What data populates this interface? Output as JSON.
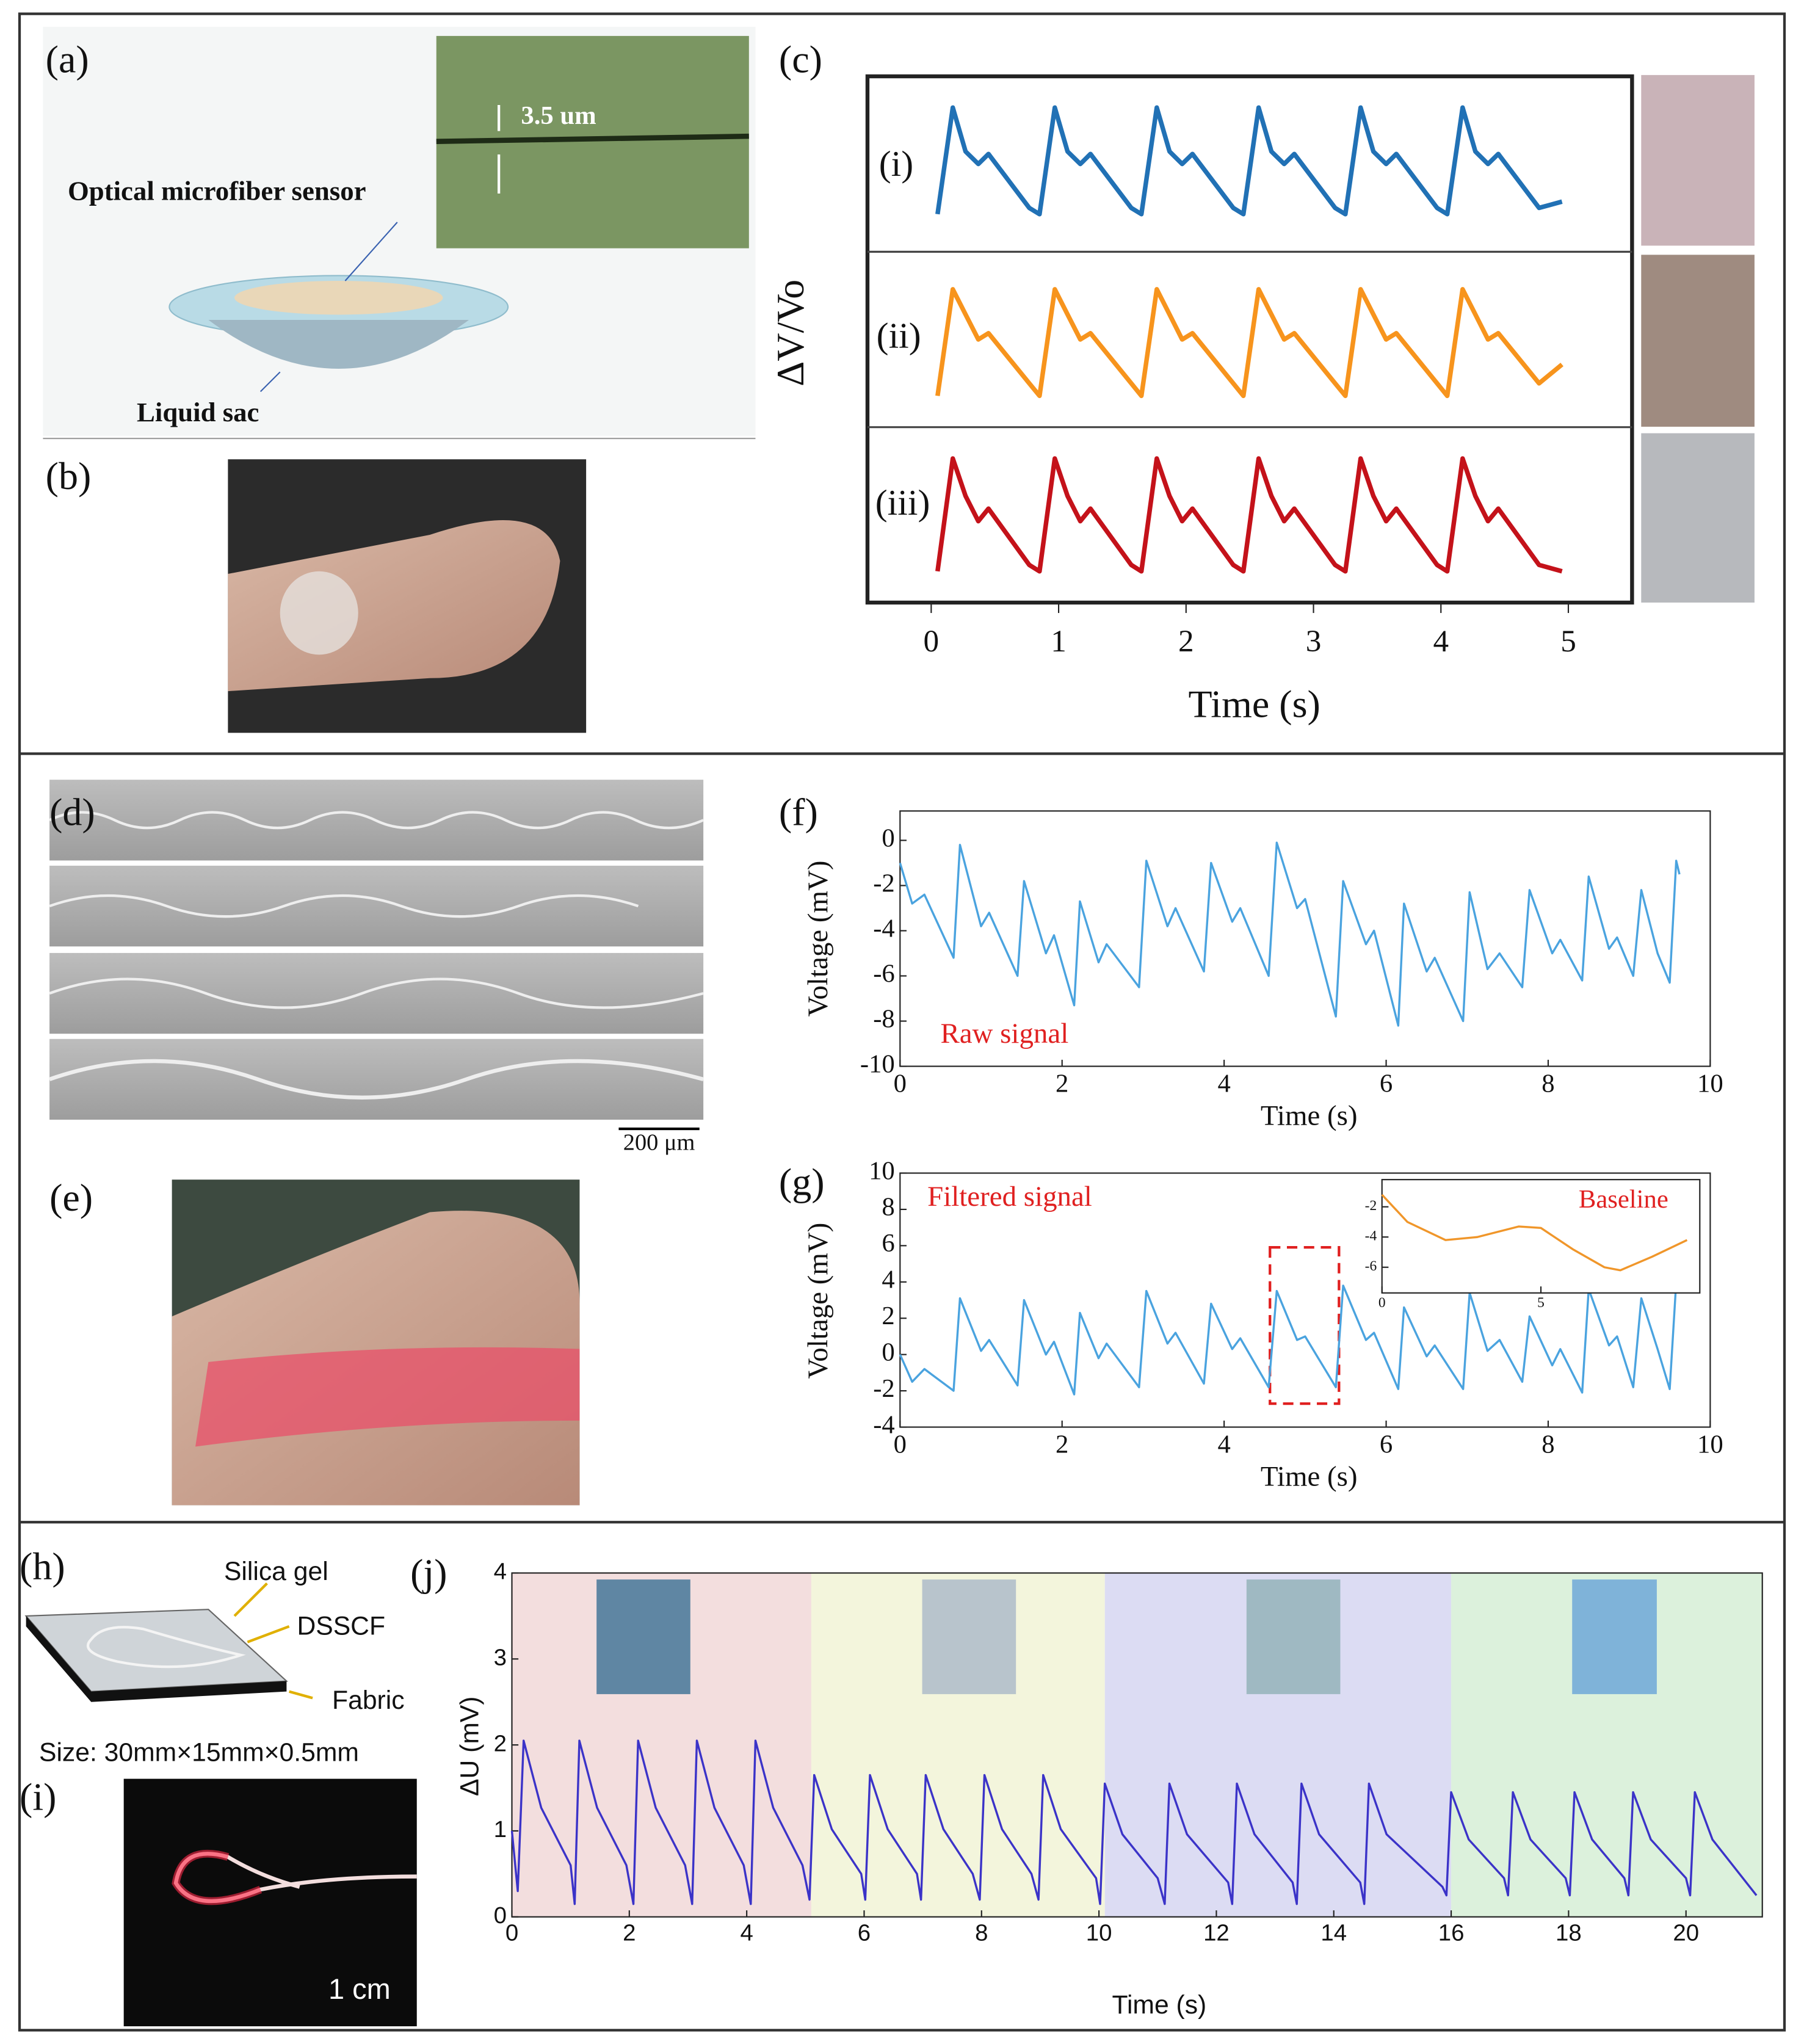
{
  "panel_labels": [
    "(a)",
    "(b)",
    "(c)",
    "(d)",
    "(e)",
    "(f)",
    "(g)",
    "(h)",
    "(i)",
    "(j)"
  ],
  "labels": {
    "thickness": "3.5 um",
    "sensor": "Optical microfiber sensor",
    "sac": "Liquid sac",
    "scale_bar": "200 μm",
    "layer_1": "Silica gel",
    "layer_2": "DSSCF",
    "layer_3": "Fabric",
    "size": "Size: 30mm×15mm×0.5mm",
    "fiber_scale": "1 cm"
  },
  "chart_data": [
    {
      "type": "line",
      "xlabel": "Time (s)",
      "ylabel": "ΔV/Vo",
      "xlim": [
        -0.5,
        5.5
      ],
      "xticks": [
        0,
        1,
        2,
        3,
        4,
        5
      ],
      "ylim": [
        -0.2,
        1.2
      ],
      "stacked_panels": true,
      "x": [
        0.05,
        0.17,
        0.27,
        0.37,
        0.45,
        0.77,
        0.85,
        0.97,
        1.07,
        1.17,
        1.25,
        1.57,
        1.65,
        1.77,
        1.87,
        1.97,
        2.05,
        2.37,
        2.45,
        2.57,
        2.67,
        2.77,
        2.85,
        3.17,
        3.25,
        3.37,
        3.47,
        3.57,
        3.65,
        3.97,
        4.05,
        4.17,
        4.27,
        4.37,
        4.45,
        4.77,
        4.95
      ],
      "series": [
        {
          "name": "(i)",
          "color": "#2171b5",
          "values": [
            0.1,
            0.95,
            0.6,
            0.5,
            0.58,
            0.15,
            0.1,
            0.95,
            0.6,
            0.5,
            0.58,
            0.15,
            0.1,
            0.95,
            0.6,
            0.5,
            0.58,
            0.15,
            0.1,
            0.95,
            0.6,
            0.5,
            0.58,
            0.15,
            0.1,
            0.95,
            0.6,
            0.5,
            0.58,
            0.15,
            0.1,
            0.95,
            0.6,
            0.5,
            0.58,
            0.15,
            0.2
          ]
        },
        {
          "name": "(ii)",
          "color": "#f7941d",
          "values": [
            0.05,
            0.9,
            0.7,
            0.5,
            0.55,
            0.15,
            0.05,
            0.9,
            0.7,
            0.5,
            0.55,
            0.15,
            0.05,
            0.9,
            0.7,
            0.5,
            0.55,
            0.15,
            0.05,
            0.9,
            0.7,
            0.5,
            0.55,
            0.15,
            0.05,
            0.9,
            0.7,
            0.5,
            0.55,
            0.15,
            0.05,
            0.9,
            0.7,
            0.5,
            0.55,
            0.15,
            0.3
          ]
        },
        {
          "name": "(iii)",
          "color": "#c4121a",
          "values": [
            0.05,
            0.95,
            0.65,
            0.45,
            0.55,
            0.1,
            0.05,
            0.95,
            0.65,
            0.45,
            0.55,
            0.1,
            0.05,
            0.95,
            0.65,
            0.45,
            0.55,
            0.1,
            0.05,
            0.95,
            0.65,
            0.45,
            0.55,
            0.1,
            0.05,
            0.95,
            0.65,
            0.45,
            0.55,
            0.1,
            0.05,
            0.95,
            0.65,
            0.45,
            0.55,
            0.1,
            0.05
          ]
        }
      ]
    },
    {
      "type": "line",
      "xlabel": "Time (s)",
      "ylabel": "Voltage (mV)",
      "annotation": "Raw signal",
      "xlim": [
        0,
        10
      ],
      "xticks": [
        0,
        2,
        4,
        6,
        8,
        10
      ],
      "ylim": [
        -10,
        1.3
      ],
      "yticks": [
        -10,
        -8,
        -6,
        -4,
        -2,
        0
      ],
      "x": [
        0,
        0.15,
        0.3,
        0.66,
        0.74,
        1.0,
        1.1,
        1.45,
        1.53,
        1.8,
        1.9,
        2.15,
        2.22,
        2.45,
        2.55,
        2.95,
        3.04,
        3.3,
        3.4,
        3.75,
        3.84,
        4.1,
        4.2,
        4.55,
        4.65,
        4.9,
        5.0,
        5.38,
        5.47,
        5.75,
        5.85,
        6.15,
        6.22,
        6.5,
        6.6,
        6.95,
        7.03,
        7.25,
        7.4,
        7.68,
        7.77,
        8.05,
        8.15,
        8.42,
        8.5,
        8.75,
        8.85,
        9.05,
        9.15,
        9.35,
        9.5,
        9.58,
        9.62
      ],
      "series": [
        {
          "color": "#4aa3df",
          "values": [
            -1,
            -2.8,
            -2.4,
            -5.2,
            -0.2,
            -3.8,
            -3.2,
            -6.0,
            -1.8,
            -5.0,
            -4.2,
            -7.3,
            -2.7,
            -5.4,
            -4.6,
            -6.5,
            -0.9,
            -3.8,
            -3.0,
            -5.8,
            -1.0,
            -3.6,
            -3.0,
            -6.0,
            -0.1,
            -3.0,
            -2.6,
            -7.8,
            -1.8,
            -4.6,
            -4.0,
            -8.2,
            -2.8,
            -5.8,
            -5.2,
            -8.0,
            -2.3,
            -5.7,
            -5.0,
            -6.5,
            -2.2,
            -5.0,
            -4.4,
            -6.2,
            -1.6,
            -4.8,
            -4.3,
            -6.0,
            -2.2,
            -5.0,
            -6.3,
            -0.9,
            -1.5
          ]
        }
      ]
    },
    {
      "type": "line",
      "xlabel": "Time (s)",
      "ylabel": "Voltage (mV)",
      "annotation": "Filtered signal",
      "xlim": [
        0,
        10
      ],
      "xticks": [
        0,
        2,
        4,
        6,
        8,
        10
      ],
      "ylim": [
        -4,
        10
      ],
      "yticks": [
        -4,
        -2,
        0,
        2,
        4,
        6,
        8,
        10
      ],
      "x": [
        0,
        0.15,
        0.3,
        0.66,
        0.74,
        1.0,
        1.1,
        1.45,
        1.53,
        1.8,
        1.9,
        2.15,
        2.22,
        2.45,
        2.55,
        2.95,
        3.04,
        3.3,
        3.4,
        3.75,
        3.84,
        4.1,
        4.2,
        4.55,
        4.65,
        4.9,
        5.0,
        5.38,
        5.47,
        5.75,
        5.85,
        6.15,
        6.22,
        6.5,
        6.6,
        6.95,
        7.03,
        7.25,
        7.4,
        7.68,
        7.77,
        8.05,
        8.15,
        8.42,
        8.5,
        8.75,
        8.85,
        9.05,
        9.15,
        9.35,
        9.5,
        9.58,
        9.62
      ],
      "series": [
        {
          "color": "#4aa3df",
          "values": [
            0,
            -1.5,
            -0.8,
            -2.0,
            3.1,
            0.2,
            0.8,
            -1.7,
            3.0,
            0.0,
            0.7,
            -2.2,
            2.3,
            -0.2,
            0.6,
            -1.8,
            3.5,
            0.6,
            1.2,
            -1.6,
            2.8,
            0.3,
            0.9,
            -1.8,
            3.5,
            0.8,
            1.0,
            -1.8,
            3.8,
            0.8,
            1.2,
            -1.9,
            2.6,
            -0.1,
            0.5,
            -1.9,
            3.4,
            0.2,
            0.8,
            -1.5,
            2.1,
            -0.6,
            0.3,
            -2.1,
            3.6,
            0.5,
            1.0,
            -1.8,
            3.1,
            0.3,
            -1.9,
            4.0,
            3.5
          ]
        }
      ]
    },
    {
      "type": "line",
      "annotation": "Baseline",
      "xlim": [
        0,
        10
      ],
      "xticks": [
        0,
        5
      ],
      "ylim": [
        -7.7,
        -0.2
      ],
      "yticks": [
        -6,
        -4,
        -2
      ],
      "x": [
        0,
        0.8,
        2,
        3,
        4.3,
        5,
        6,
        7,
        7.5,
        8.5,
        9.6
      ],
      "series": [
        {
          "color": "#f0962a",
          "values": [
            -1.2,
            -3,
            -4.2,
            -4,
            -3.3,
            -3.4,
            -4.8,
            -6,
            -6.2,
            -5.3,
            -4.2
          ]
        }
      ]
    },
    {
      "type": "line",
      "xlabel": "Time (s)",
      "ylabel": "ΔU (mV)",
      "xlim": [
        0,
        21.3
      ],
      "xticks": [
        0,
        2,
        4,
        6,
        8,
        10,
        12,
        14,
        16,
        18,
        20
      ],
      "ylim": [
        0,
        4
      ],
      "yticks": [
        0,
        1,
        2,
        3,
        4
      ],
      "regions": [
        {
          "xlim": [
            0,
            5.1
          ],
          "color": "#f3dede"
        },
        {
          "xlim": [
            5.1,
            10.1
          ],
          "color": "#f3f5dc"
        },
        {
          "xlim": [
            10.1,
            16
          ],
          "color": "#dcdcf3"
        },
        {
          "xlim": [
            16,
            21.3
          ],
          "color": "#dcf1dc"
        }
      ],
      "x": [
        0,
        0.1,
        0.2,
        0.5,
        1.0,
        1.07,
        1.15,
        1.45,
        1.95,
        2.07,
        2.15,
        2.45,
        2.95,
        3.07,
        3.15,
        3.45,
        3.95,
        4.07,
        4.15,
        4.45,
        4.95,
        5.07,
        5.15,
        5.45,
        5.95,
        6.02,
        6.1,
        6.4,
        6.9,
        6.97,
        7.05,
        7.35,
        7.85,
        7.97,
        8.05,
        8.35,
        8.85,
        8.97,
        9.05,
        9.35,
        9.95,
        10.02,
        10.1,
        10.4,
        11.0,
        11.12,
        11.2,
        11.5,
        12.2,
        12.27,
        12.35,
        12.65,
        13.3,
        13.37,
        13.45,
        13.75,
        14.45,
        14.52,
        14.6,
        14.9,
        15.85,
        15.92,
        16.0,
        16.3,
        16.9,
        16.97,
        17.05,
        17.35,
        17.95,
        18.02,
        18.1,
        18.4,
        18.95,
        19.02,
        19.1,
        19.4,
        20.0,
        20.07,
        20.15,
        20.45,
        21.2
      ],
      "series": [
        {
          "color": "#3b33c8",
          "values": [
            1.0,
            0.3,
            2.05,
            1.27,
            0.6,
            0.15,
            2.05,
            1.27,
            0.6,
            0.15,
            2.05,
            1.27,
            0.6,
            0.15,
            2.05,
            1.27,
            0.6,
            0.15,
            2.05,
            1.27,
            0.6,
            0.2,
            1.65,
            1.02,
            0.5,
            0.2,
            1.65,
            1.02,
            0.5,
            0.2,
            1.65,
            1.02,
            0.5,
            0.2,
            1.65,
            1.02,
            0.5,
            0.2,
            1.65,
            1.02,
            0.45,
            0.15,
            1.55,
            0.96,
            0.45,
            0.15,
            1.55,
            0.96,
            0.4,
            0.15,
            1.55,
            0.96,
            0.4,
            0.15,
            1.55,
            0.96,
            0.4,
            0.15,
            1.55,
            0.96,
            0.35,
            0.25,
            1.45,
            0.9,
            0.45,
            0.25,
            1.45,
            0.9,
            0.45,
            0.25,
            1.45,
            0.9,
            0.45,
            0.25,
            1.45,
            0.9,
            0.45,
            0.25,
            1.45,
            0.9,
            0.25
          ]
        }
      ]
    }
  ]
}
